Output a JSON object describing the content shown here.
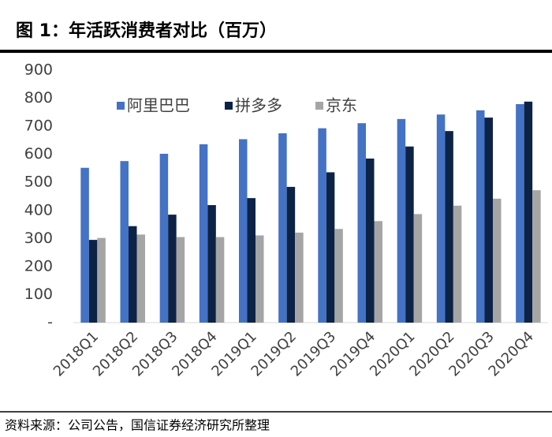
{
  "chart_data": {
    "type": "bar",
    "title": "图 1：年活跃消费者对比（百万）",
    "source": "资料来源：公司公告，国信证券经济研究所整理",
    "categories": [
      "2018Q1",
      "2018Q2",
      "2018Q3",
      "2018Q4",
      "2019Q1",
      "2019Q2",
      "2019Q3",
      "2019Q4",
      "2020Q1",
      "2020Q2",
      "2020Q3",
      "2020Q4"
    ],
    "series": [
      {
        "name": "阿里巴巴",
        "color": "#4472c4",
        "values": [
          552,
          576,
          602,
          636,
          654,
          675,
          693,
          711,
          726,
          742,
          757,
          779
        ]
      },
      {
        "name": "拼多多",
        "color": "#0d2346",
        "values": [
          295,
          344,
          385,
          419,
          444,
          484,
          536,
          585,
          628,
          683,
          731,
          788
        ]
      },
      {
        "name": "京东",
        "color": "#a5a5a5",
        "values": [
          302,
          314,
          305,
          305,
          311,
          321,
          334,
          362,
          387,
          417,
          442,
          472
        ]
      }
    ],
    "ylim": [
      0,
      900
    ],
    "yticks": [
      {
        "value": 0,
        "label": "-"
      },
      100,
      200,
      300,
      400,
      500,
      600,
      700,
      800,
      900
    ],
    "legend": "top"
  }
}
